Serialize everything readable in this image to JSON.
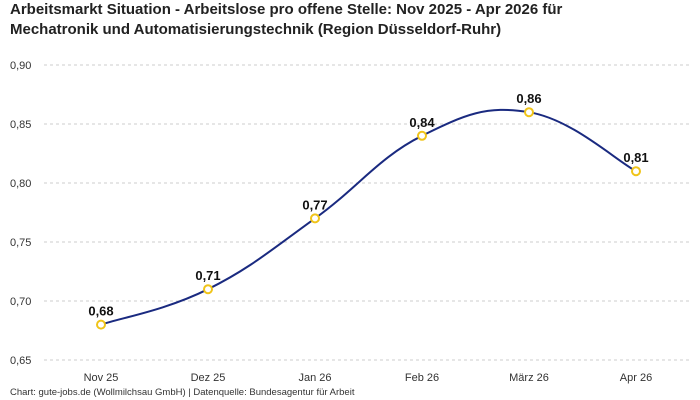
{
  "chart_data": {
    "type": "line",
    "title_line1": "Arbeitsmarkt Situation - Arbeitslose pro offene Stelle: Nov 2025 - Apr 2026 für",
    "title_line2": "Mechatronik und Automatisierungstechnik (Region Düsseldorf-Ruhr)",
    "categories": [
      "Nov 25",
      "Dez 25",
      "Jan 26",
      "Feb 26",
      "März 26",
      "Apr 26"
    ],
    "values": [
      0.68,
      0.71,
      0.77,
      0.84,
      0.86,
      0.81
    ],
    "data_labels": [
      "0,68",
      "0,71",
      "0,77",
      "0,84",
      "0,86",
      "0,81"
    ],
    "ylim": [
      0.65,
      0.9
    ],
    "yticks": [
      0.65,
      0.7,
      0.75,
      0.8,
      0.85,
      0.9
    ],
    "ytick_labels": [
      "0,65",
      "0,70",
      "0,75",
      "0,80",
      "0,85",
      "0,90"
    ],
    "grid": true,
    "line_color": "#1a2a80",
    "marker_color": "#f0c419",
    "grid_color": "#cccccc"
  },
  "footer": {
    "source": "Chart: gute-jobs.de (Wollmilchsau GmbH) | Datenquelle: Bundesagentur für Arbeit"
  }
}
